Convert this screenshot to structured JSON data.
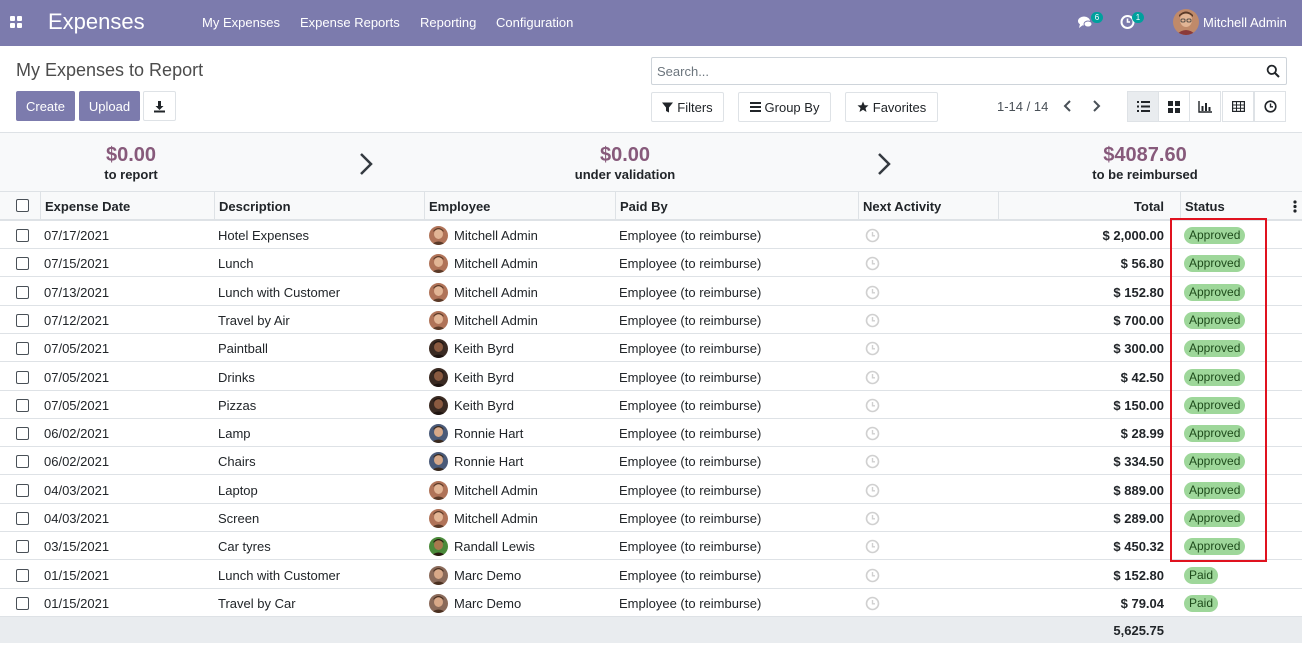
{
  "navbar": {
    "app_title": "Expenses",
    "menu": [
      "My Expenses",
      "Expense Reports",
      "Reporting",
      "Configuration"
    ],
    "messages_count": "6",
    "activities_count": "1",
    "user_name": "Mitchell Admin"
  },
  "control_panel": {
    "title": "My Expenses to Report",
    "create_label": "Create",
    "upload_label": "Upload",
    "search_placeholder": "Search...",
    "filters_label": "Filters",
    "groupby_label": "Group By",
    "favorites_label": "Favorites",
    "pager": "1-14 / 14"
  },
  "summary": [
    {
      "amount": "$0.00",
      "label": "to report"
    },
    {
      "amount": "$0.00",
      "label": "under validation"
    },
    {
      "amount": "$4087.60",
      "label": "to be reimbursed"
    }
  ],
  "table": {
    "headers": {
      "date": "Expense Date",
      "description": "Description",
      "employee": "Employee",
      "paid_by": "Paid By",
      "next_activity": "Next Activity",
      "total": "Total",
      "status": "Status"
    },
    "rows": [
      {
        "date": "07/17/2021",
        "description": "Hotel Expenses",
        "employee": "Mitchell Admin",
        "paid_by": "Employee (to reimburse)",
        "total": "$ 2,000.00",
        "status": "Approved"
      },
      {
        "date": "07/15/2021",
        "description": "Lunch",
        "employee": "Mitchell Admin",
        "paid_by": "Employee (to reimburse)",
        "total": "$ 56.80",
        "status": "Approved"
      },
      {
        "date": "07/13/2021",
        "description": "Lunch with Customer",
        "employee": "Mitchell Admin",
        "paid_by": "Employee (to reimburse)",
        "total": "$ 152.80",
        "status": "Approved"
      },
      {
        "date": "07/12/2021",
        "description": "Travel by Air",
        "employee": "Mitchell Admin",
        "paid_by": "Employee (to reimburse)",
        "total": "$ 700.00",
        "status": "Approved"
      },
      {
        "date": "07/05/2021",
        "description": "Paintball",
        "employee": "Keith Byrd",
        "paid_by": "Employee (to reimburse)",
        "total": "$ 300.00",
        "status": "Approved"
      },
      {
        "date": "07/05/2021",
        "description": "Drinks",
        "employee": "Keith Byrd",
        "paid_by": "Employee (to reimburse)",
        "total": "$ 42.50",
        "status": "Approved"
      },
      {
        "date": "07/05/2021",
        "description": "Pizzas",
        "employee": "Keith Byrd",
        "paid_by": "Employee (to reimburse)",
        "total": "$ 150.00",
        "status": "Approved"
      },
      {
        "date": "06/02/2021",
        "description": "Lamp",
        "employee": "Ronnie Hart",
        "paid_by": "Employee (to reimburse)",
        "total": "$ 28.99",
        "status": "Approved"
      },
      {
        "date": "06/02/2021",
        "description": "Chairs",
        "employee": "Ronnie Hart",
        "paid_by": "Employee (to reimburse)",
        "total": "$ 334.50",
        "status": "Approved"
      },
      {
        "date": "04/03/2021",
        "description": "Laptop",
        "employee": "Mitchell Admin",
        "paid_by": "Employee (to reimburse)",
        "total": "$ 889.00",
        "status": "Approved"
      },
      {
        "date": "04/03/2021",
        "description": "Screen",
        "employee": "Mitchell Admin",
        "paid_by": "Employee (to reimburse)",
        "total": "$ 289.00",
        "status": "Approved"
      },
      {
        "date": "03/15/2021",
        "description": "Car tyres",
        "employee": "Randall Lewis",
        "paid_by": "Employee (to reimburse)",
        "total": "$ 450.32",
        "status": "Approved"
      },
      {
        "date": "01/15/2021",
        "description": "Lunch with Customer",
        "employee": "Marc Demo",
        "paid_by": "Employee (to reimburse)",
        "total": "$ 152.80",
        "status": "Paid"
      },
      {
        "date": "01/15/2021",
        "description": "Travel by Car",
        "employee": "Marc Demo",
        "paid_by": "Employee (to reimburse)",
        "total": "$ 79.04",
        "status": "Paid"
      }
    ],
    "footer_total": "5,625.75"
  },
  "colors": {
    "navbar": "#7c7bad",
    "summary_amount": "#875a7b",
    "status_badge": "#9ed79a",
    "highlight": "#e0121f"
  }
}
